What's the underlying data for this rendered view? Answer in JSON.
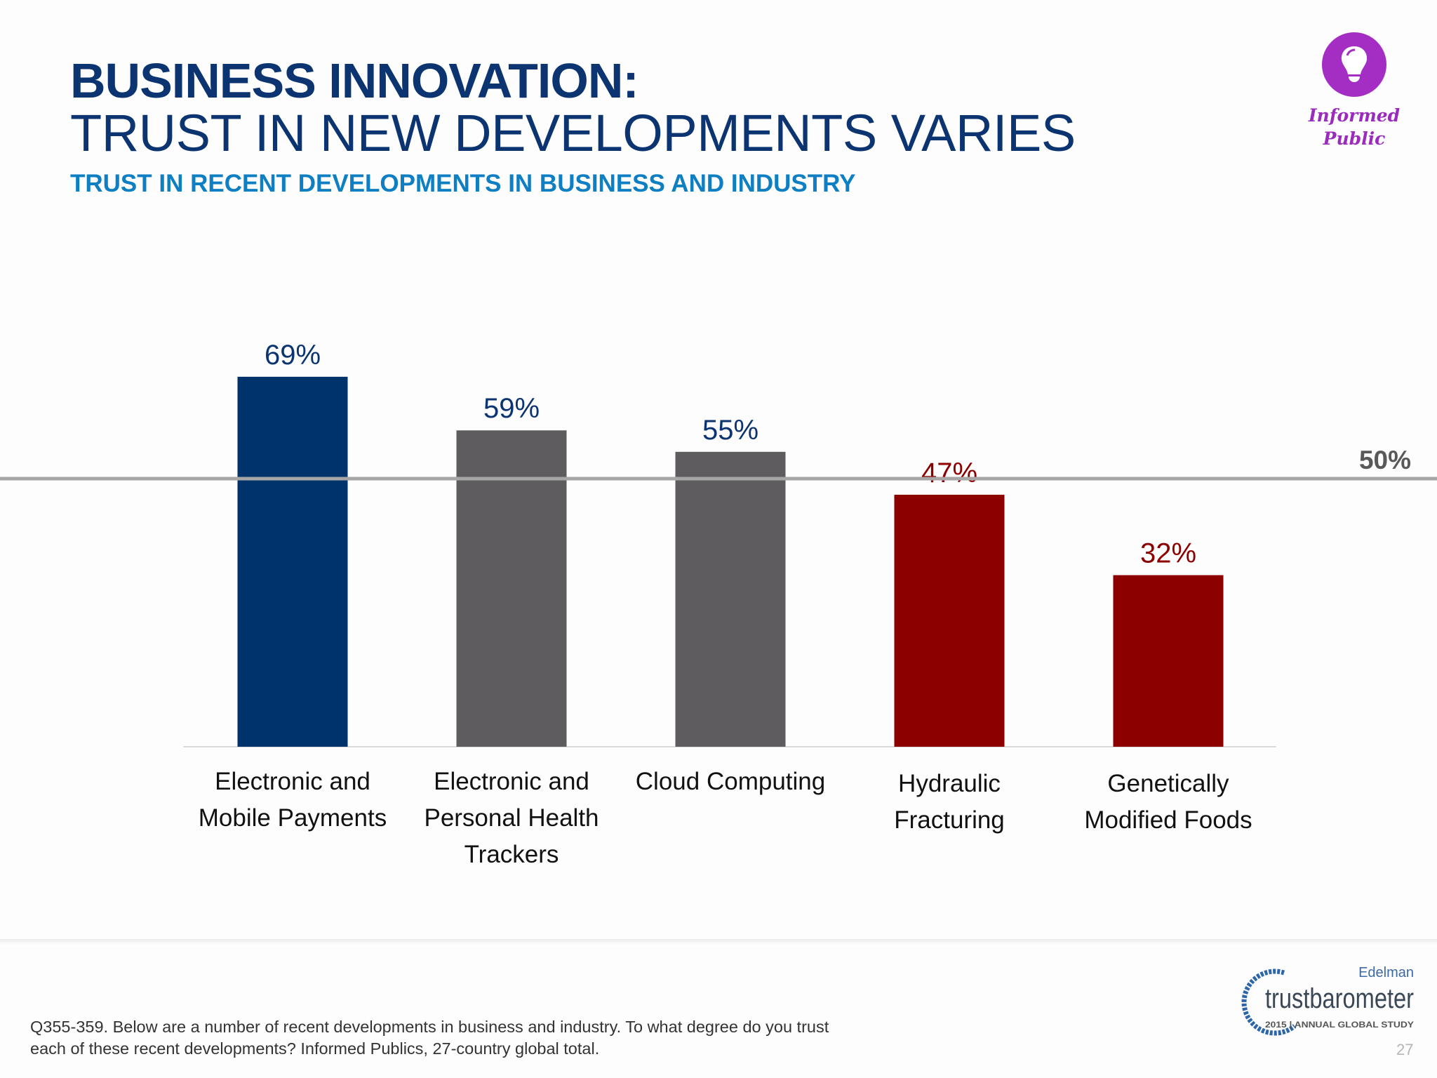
{
  "header": {
    "title_line1": "BUSINESS INNOVATION:",
    "title_line2": "TRUST IN NEW DEVELOPMENTS VARIES",
    "subtitle": "TRUST IN RECENT DEVELOPMENTS IN BUSINESS AND INDUSTRY"
  },
  "badge": {
    "icon": "lightbulb-icon",
    "line1": "Informed",
    "line2": "Public",
    "color": "#a42ec4"
  },
  "chart_data": {
    "type": "bar",
    "categories": [
      "Electronic and Mobile Payments",
      "Electronic and Personal Health Trackers",
      "Cloud Computing",
      "Hydraulic Fracturing",
      "Genetically Modified Foods"
    ],
    "values": [
      69,
      59,
      55,
      47,
      32
    ],
    "data_labels": [
      "69%",
      "59%",
      "55%",
      "47%",
      "32%"
    ],
    "colors": [
      "#00336b",
      "#5e5c5f",
      "#5e5c5f",
      "#8c0000",
      "#8c0000"
    ],
    "label_colors": [
      "#0b3470",
      "#0b3470",
      "#0b3470",
      "#8c0000",
      "#8c0000"
    ],
    "reference_line": {
      "value": 50,
      "label": "50%",
      "color": "#a6a6a6"
    },
    "ylim": [
      0,
      100
    ],
    "grid": false,
    "title": "",
    "xlabel": "",
    "ylabel": ""
  },
  "footer": {
    "note_line1": "Q355-359. Below are a number of recent developments in business and industry. To what degree do you trust",
    "note_line2": "each of these recent developments? Informed Publics, 27-country global total.",
    "logo_top": "Edelman",
    "logo_main": "trustbarometer",
    "logo_sub": "2015 | ANNUAL GLOBAL STUDY",
    "page_number": "27"
  }
}
